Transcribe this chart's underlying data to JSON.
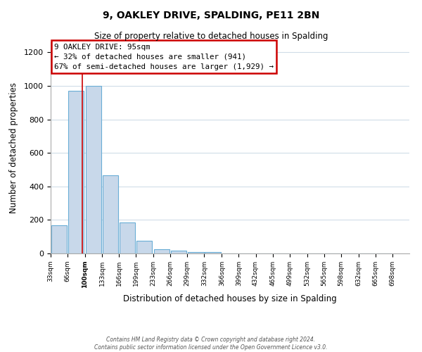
{
  "title": "9, OAKLEY DRIVE, SPALDING, PE11 2BN",
  "subtitle": "Size of property relative to detached houses in Spalding",
  "xlabel": "Distribution of detached houses by size in Spalding",
  "ylabel": "Number of detached properties",
  "bins": [
    33,
    66,
    100,
    133,
    166,
    199,
    233,
    266,
    299,
    332,
    366,
    399,
    432,
    465,
    499,
    532,
    565,
    598,
    632,
    665,
    698
  ],
  "bar_heights": [
    170,
    970,
    1000,
    465,
    185,
    75,
    25,
    15,
    10,
    10,
    0,
    0,
    0,
    0,
    0,
    0,
    0,
    0,
    0,
    0
  ],
  "bar_color": "#c8d8ea",
  "bar_edgecolor": "#6aaed6",
  "red_line_x": 95,
  "annotation_title": "9 OAKLEY DRIVE: 95sqm",
  "annotation_line1": "← 32% of detached houses are smaller (941)",
  "annotation_line2": "67% of semi-detached houses are larger (1,929) →",
  "annotation_box_edgecolor": "#cc0000",
  "annotation_box_facecolor": "#ffffff",
  "red_line_color": "#cc0000",
  "ylim": [
    0,
    1260
  ],
  "yticks": [
    0,
    200,
    400,
    600,
    800,
    1000,
    1200
  ],
  "tick_labels": [
    "33sqm",
    "66sqm",
    "100sqm",
    "133sqm",
    "166sqm",
    "199sqm",
    "233sqm",
    "266sqm",
    "299sqm",
    "332sqm",
    "366sqm",
    "399sqm",
    "432sqm",
    "465sqm",
    "499sqm",
    "532sqm",
    "565sqm",
    "598sqm",
    "632sqm",
    "665sqm",
    "698sqm"
  ],
  "footer_line1": "Contains HM Land Registry data © Crown copyright and database right 2024.",
  "footer_line2": "Contains public sector information licensed under the Open Government Licence v3.0.",
  "grid_color": "#d0dde8",
  "background_color": "#ffffff"
}
